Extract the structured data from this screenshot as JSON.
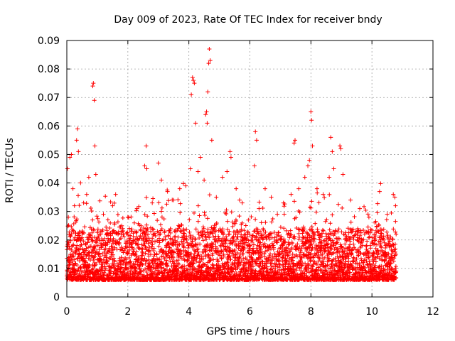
{
  "chart_data": {
    "type": "scatter",
    "title": "Day 009 of 2023, Rate Of TEC Index for receiver bndy",
    "xlabel": "GPS time / hours",
    "ylabel": "ROTI / TECUs",
    "xlim": [
      0,
      12
    ],
    "ylim": [
      0,
      0.09
    ],
    "x_ticks": [
      0,
      2,
      4,
      6,
      8,
      10,
      12
    ],
    "y_ticks": [
      0,
      0.01,
      0.02,
      0.03,
      0.04,
      0.05,
      0.06,
      0.07,
      0.08,
      0.09
    ],
    "x_tick_labels": [
      "0",
      "2",
      "4",
      "6",
      "8",
      "10",
      "12"
    ],
    "y_tick_labels": [
      "0",
      "0.01",
      "0.02",
      "0.03",
      "0.04",
      "0.05",
      "0.06",
      "0.07",
      "0.08",
      "0.09"
    ],
    "grid": true,
    "marker": "+",
    "color": "#ff0000",
    "data_extent_hours": [
      0,
      10.8
    ],
    "series": [
      {
        "name": "ROTI",
        "points": [
          [
            0.02,
            0.045
          ],
          [
            0.05,
            0.028
          ],
          [
            0.1,
            0.049
          ],
          [
            0.15,
            0.05
          ],
          [
            0.2,
            0.038
          ],
          [
            0.25,
            0.032
          ],
          [
            0.32,
            0.055
          ],
          [
            0.35,
            0.059
          ],
          [
            0.38,
            0.051
          ],
          [
            0.45,
            0.04
          ],
          [
            0.55,
            0.033
          ],
          [
            0.65,
            0.036
          ],
          [
            0.72,
            0.042
          ],
          [
            0.85,
            0.074
          ],
          [
            0.87,
            0.075
          ],
          [
            0.9,
            0.069
          ],
          [
            0.92,
            0.053
          ],
          [
            0.95,
            0.043
          ],
          [
            1.2,
            0.029
          ],
          [
            1.5,
            0.032
          ],
          [
            1.6,
            0.036
          ],
          [
            1.8,
            0.025
          ],
          [
            2.0,
            0.028
          ],
          [
            2.3,
            0.031
          ],
          [
            2.55,
            0.046
          ],
          [
            2.6,
            0.053
          ],
          [
            2.62,
            0.045
          ],
          [
            2.8,
            0.033
          ],
          [
            3.0,
            0.047
          ],
          [
            3.1,
            0.041
          ],
          [
            3.3,
            0.037
          ],
          [
            3.5,
            0.034
          ],
          [
            3.7,
            0.038
          ],
          [
            3.9,
            0.039
          ],
          [
            4.05,
            0.045
          ],
          [
            4.08,
            0.071
          ],
          [
            4.12,
            0.077
          ],
          [
            4.15,
            0.076
          ],
          [
            4.18,
            0.075
          ],
          [
            4.22,
            0.061
          ],
          [
            4.3,
            0.044
          ],
          [
            4.38,
            0.049
          ],
          [
            4.5,
            0.041
          ],
          [
            4.55,
            0.064
          ],
          [
            4.58,
            0.065
          ],
          [
            4.6,
            0.061
          ],
          [
            4.62,
            0.072
          ],
          [
            4.65,
            0.082
          ],
          [
            4.67,
            0.087
          ],
          [
            4.7,
            0.083
          ],
          [
            4.75,
            0.055
          ],
          [
            4.9,
            0.035
          ],
          [
            5.1,
            0.042
          ],
          [
            5.25,
            0.044
          ],
          [
            5.35,
            0.051
          ],
          [
            5.38,
            0.049
          ],
          [
            5.55,
            0.038
          ],
          [
            5.75,
            0.033
          ],
          [
            5.95,
            0.027
          ],
          [
            6.15,
            0.046
          ],
          [
            6.18,
            0.058
          ],
          [
            6.22,
            0.055
          ],
          [
            6.3,
            0.031
          ],
          [
            6.5,
            0.038
          ],
          [
            6.7,
            0.035
          ],
          [
            6.9,
            0.029
          ],
          [
            7.1,
            0.033
          ],
          [
            7.35,
            0.036
          ],
          [
            7.45,
            0.054
          ],
          [
            7.48,
            0.055
          ],
          [
            7.6,
            0.038
          ],
          [
            7.8,
            0.042
          ],
          [
            7.9,
            0.046
          ],
          [
            7.95,
            0.048
          ],
          [
            8.0,
            0.065
          ],
          [
            8.02,
            0.062
          ],
          [
            8.05,
            0.053
          ],
          [
            8.2,
            0.038
          ],
          [
            8.4,
            0.036
          ],
          [
            8.6,
            0.042
          ],
          [
            8.65,
            0.056
          ],
          [
            8.7,
            0.051
          ],
          [
            8.75,
            0.045
          ],
          [
            8.95,
            0.053
          ],
          [
            8.98,
            0.052
          ],
          [
            9.05,
            0.043
          ],
          [
            9.3,
            0.034
          ],
          [
            9.6,
            0.031
          ],
          [
            9.9,
            0.028
          ],
          [
            10.1,
            0.026
          ],
          [
            10.25,
            0.037
          ],
          [
            10.5,
            0.029
          ],
          [
            10.7,
            0.036
          ],
          [
            10.75,
            0.035
          ]
        ]
      }
    ]
  }
}
